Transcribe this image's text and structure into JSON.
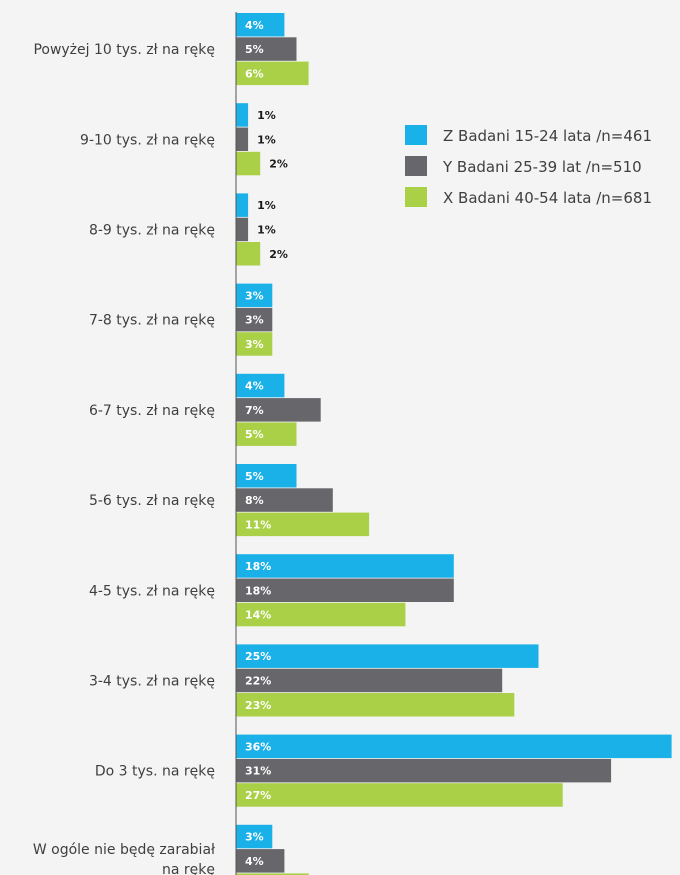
{
  "chart_data": {
    "type": "bar",
    "orientation": "horizontal",
    "categories": [
      "Powyżej 10 tys. zł na rękę",
      "9-10 tys. zł na rękę",
      "8-9 tys. zł na rękę",
      "7-8 tys. zł na rękę",
      "6-7 tys. zł na rękę",
      "5-6 tys. zł na rękę",
      "4-5 tys. zł na rękę",
      "3-4 tys. zł na rękę",
      "Do  3 tys. na rękę",
      "W ogóle nie będę zarabiał na rękę"
    ],
    "series": [
      {
        "name": "Z Badani 15-24 lata /n=461",
        "color": "#1ab0e8",
        "values": [
          4,
          1,
          1,
          3,
          4,
          5,
          18,
          25,
          36,
          3
        ]
      },
      {
        "name": "Y Badani 25-39 lat /n=510",
        "color": "#67676b",
        "values": [
          5,
          1,
          1,
          3,
          7,
          8,
          18,
          22,
          31,
          4
        ]
      },
      {
        "name": "X Badani 40-54 lata /n=681",
        "color": "#a9d046",
        "values": [
          6,
          2,
          2,
          3,
          5,
          11,
          14,
          23,
          27,
          6
        ]
      }
    ],
    "value_suffix": "%",
    "legend_position": "right",
    "grid": false,
    "xlim": [
      0,
      36
    ]
  }
}
